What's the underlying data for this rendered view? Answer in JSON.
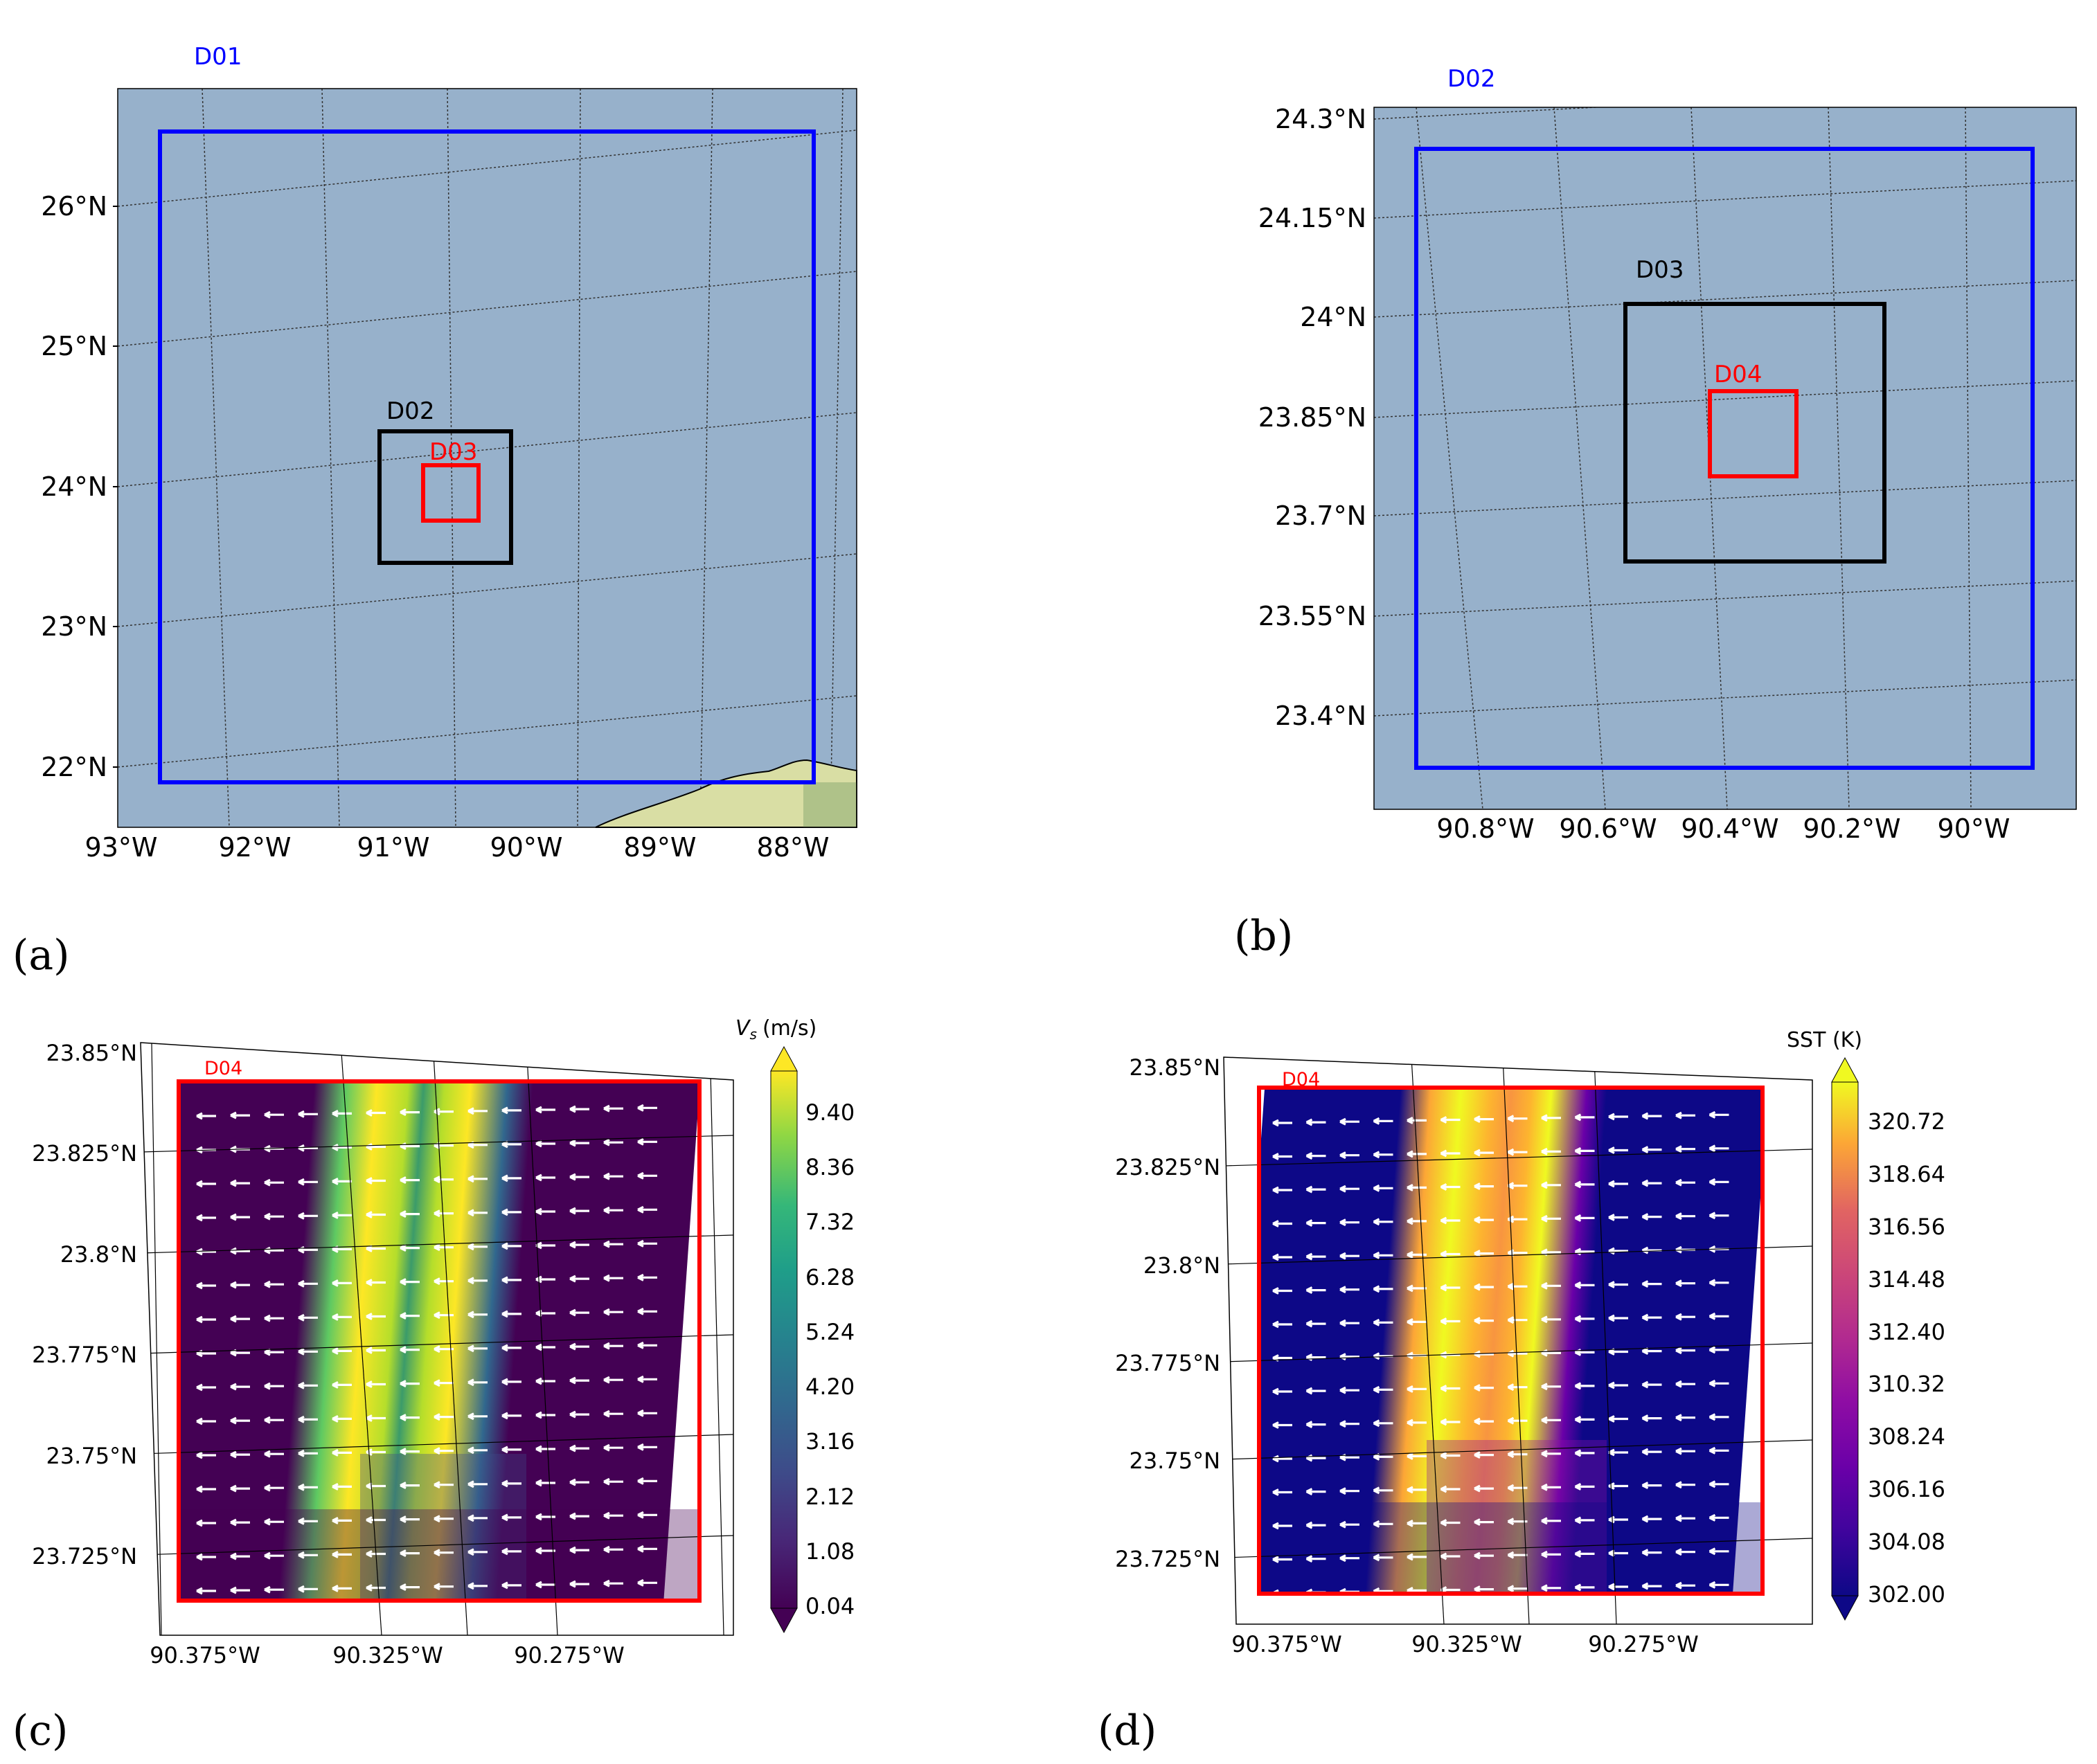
{
  "panels": {
    "a": {
      "label": "(a)",
      "outer_domain": "D01",
      "inner_domains": [
        "D02",
        "D03"
      ],
      "lat_ticks": [
        "26°N",
        "25°N",
        "24°N",
        "23°N",
        "22°N"
      ],
      "lon_ticks": [
        "93°W",
        "92°W",
        "91°W",
        "90°W",
        "89°W",
        "88°W"
      ]
    },
    "b": {
      "label": "(b)",
      "outer_domain": "D02",
      "inner_domains": [
        "D03",
        "D04"
      ],
      "lat_ticks": [
        "24.3°N",
        "24.15°N",
        "24°N",
        "23.85°N",
        "23.7°N",
        "23.55°N",
        "23.4°N"
      ],
      "lon_ticks": [
        "90.8°W",
        "90.6°W",
        "90.4°W",
        "90.2°W",
        "90°W"
      ]
    },
    "c": {
      "label": "(c)",
      "domain": "D04",
      "colorbar_title": "V",
      "colorbar_sub": "s",
      "colorbar_unit": "(m/s)",
      "colorbar_ticks": [
        "9.40",
        "8.36",
        "7.32",
        "6.28",
        "5.24",
        "4.20",
        "3.16",
        "2.12",
        "1.08",
        "0.04"
      ],
      "lat_ticks": [
        "23.85°N",
        "23.825°N",
        "23.8°N",
        "23.775°N",
        "23.75°N",
        "23.725°N"
      ],
      "lon_ticks": [
        "90.375°W",
        "90.325°W",
        "90.275°W"
      ]
    },
    "d": {
      "label": "(d)",
      "domain": "D04",
      "colorbar_title": "SST (K)",
      "colorbar_ticks": [
        "320.72",
        "318.64",
        "316.56",
        "314.48",
        "312.40",
        "310.32",
        "308.24",
        "306.16",
        "304.08",
        "302.00"
      ],
      "lat_ticks": [
        "23.85°N",
        "23.825°N",
        "23.8°N",
        "23.775°N",
        "23.75°N",
        "23.725°N"
      ],
      "lon_ticks": [
        "90.375°W",
        "90.325°W",
        "90.275°W"
      ]
    }
  },
  "colors": {
    "ocean": "#97b1cb",
    "outer_box": "#0000ff",
    "mid_box": "#000000",
    "inner_box": "#ff0000"
  }
}
